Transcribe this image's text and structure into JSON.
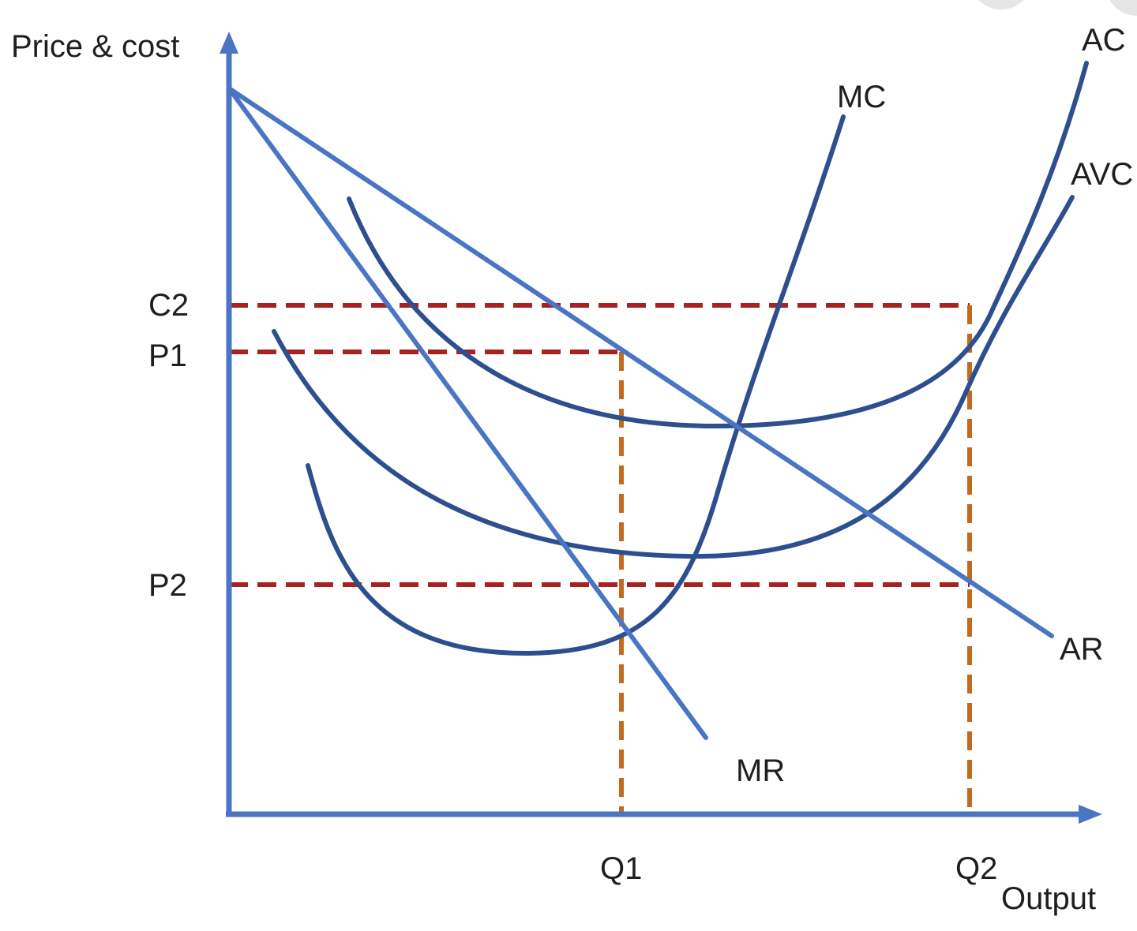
{
  "axes": {
    "y_label": "Price & cost",
    "x_label": "Output"
  },
  "y_ticks": {
    "c2": "C2",
    "p1": "P1",
    "p2": "P2"
  },
  "x_ticks": {
    "q1": "Q1",
    "q2": "Q2"
  },
  "curves": {
    "mc": "MC",
    "ac": "AC",
    "avc": "AVC",
    "ar": "AR",
    "mr": "MR"
  },
  "colors": {
    "axis": "#4a74c4",
    "demand": "#4a74c4",
    "cost": "#2e4f8f",
    "price_guides": "#a82222",
    "quantity_guides": "#c46a1f",
    "text": "#1f1f1f"
  }
}
